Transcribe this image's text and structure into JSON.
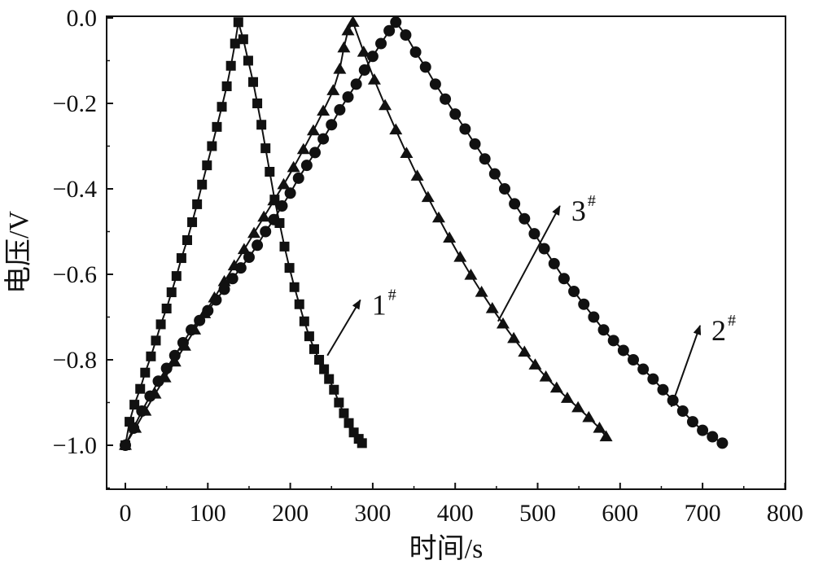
{
  "chart_data": {
    "type": "line",
    "title": "",
    "xlabel": "时间/s",
    "ylabel": "电压/V",
    "xlim": [
      -20,
      800
    ],
    "ylim": [
      -1.1,
      0.0
    ],
    "x_ticks": [
      "0",
      "100",
      "200",
      "300",
      "400",
      "500",
      "600",
      "700",
      "800"
    ],
    "y_ticks": [
      "0.0",
      "−0.2",
      "−0.4",
      "−0.6",
      "−0.8",
      "−1.0"
    ],
    "grid": false,
    "legend": "none",
    "series": [
      {
        "marker": "square",
        "color": "#111111",
        "points": [
          [
            0,
            -1.0
          ],
          [
            5,
            -0.945
          ],
          [
            11,
            -0.905
          ],
          [
            18,
            -0.868
          ],
          [
            24,
            -0.83
          ],
          [
            31,
            -0.792
          ],
          [
            37,
            -0.755
          ],
          [
            43,
            -0.717
          ],
          [
            50,
            -0.68
          ],
          [
            56,
            -0.642
          ],
          [
            62,
            -0.604
          ],
          [
            68,
            -0.562
          ],
          [
            75,
            -0.52
          ],
          [
            81,
            -0.478
          ],
          [
            87,
            -0.436
          ],
          [
            93,
            -0.39
          ],
          [
            99,
            -0.345
          ],
          [
            105,
            -0.3
          ],
          [
            111,
            -0.255
          ],
          [
            117,
            -0.208
          ],
          [
            123,
            -0.16
          ],
          [
            128,
            -0.112
          ],
          [
            133,
            -0.06
          ],
          [
            137,
            -0.01
          ],
          [
            143,
            -0.05
          ],
          [
            149,
            -0.1
          ],
          [
            155,
            -0.15
          ],
          [
            160,
            -0.2
          ],
          [
            165,
            -0.25
          ],
          [
            170,
            -0.305
          ],
          [
            175,
            -0.36
          ],
          [
            181,
            -0.425
          ],
          [
            187,
            -0.48
          ],
          [
            193,
            -0.535
          ],
          [
            199,
            -0.585
          ],
          [
            205,
            -0.63
          ],
          [
            211,
            -0.67
          ],
          [
            217,
            -0.71
          ],
          [
            223,
            -0.745
          ],
          [
            229,
            -0.775
          ],
          [
            235,
            -0.8
          ],
          [
            241,
            -0.822
          ],
          [
            247,
            -0.845
          ],
          [
            253,
            -0.87
          ],
          [
            259,
            -0.9
          ],
          [
            265,
            -0.925
          ],
          [
            271,
            -0.948
          ],
          [
            277,
            -0.97
          ],
          [
            283,
            -0.985
          ],
          [
            287,
            -0.995
          ]
        ]
      },
      {
        "marker": "circle",
        "color": "#111111",
        "points": [
          [
            0,
            -1.0
          ],
          [
            10,
            -0.96
          ],
          [
            20,
            -0.92
          ],
          [
            30,
            -0.885
          ],
          [
            40,
            -0.85
          ],
          [
            50,
            -0.82
          ],
          [
            60,
            -0.79
          ],
          [
            70,
            -0.76
          ],
          [
            80,
            -0.73
          ],
          [
            90,
            -0.708
          ],
          [
            100,
            -0.685
          ],
          [
            110,
            -0.66
          ],
          [
            120,
            -0.635
          ],
          [
            130,
            -0.61
          ],
          [
            140,
            -0.585
          ],
          [
            150,
            -0.56
          ],
          [
            160,
            -0.532
          ],
          [
            170,
            -0.5
          ],
          [
            180,
            -0.472
          ],
          [
            190,
            -0.44
          ],
          [
            200,
            -0.41
          ],
          [
            210,
            -0.375
          ],
          [
            220,
            -0.345
          ],
          [
            230,
            -0.315
          ],
          [
            240,
            -0.283
          ],
          [
            250,
            -0.25
          ],
          [
            260,
            -0.215
          ],
          [
            270,
            -0.185
          ],
          [
            280,
            -0.155
          ],
          [
            290,
            -0.122
          ],
          [
            300,
            -0.09
          ],
          [
            310,
            -0.06
          ],
          [
            320,
            -0.03
          ],
          [
            328,
            -0.01
          ],
          [
            340,
            -0.04
          ],
          [
            352,
            -0.08
          ],
          [
            364,
            -0.115
          ],
          [
            376,
            -0.155
          ],
          [
            388,
            -0.19
          ],
          [
            400,
            -0.225
          ],
          [
            412,
            -0.26
          ],
          [
            424,
            -0.295
          ],
          [
            436,
            -0.33
          ],
          [
            448,
            -0.365
          ],
          [
            460,
            -0.4
          ],
          [
            472,
            -0.435
          ],
          [
            484,
            -0.47
          ],
          [
            496,
            -0.505
          ],
          [
            508,
            -0.54
          ],
          [
            520,
            -0.575
          ],
          [
            532,
            -0.61
          ],
          [
            544,
            -0.64
          ],
          [
            556,
            -0.67
          ],
          [
            568,
            -0.7
          ],
          [
            580,
            -0.73
          ],
          [
            592,
            -0.755
          ],
          [
            604,
            -0.778
          ],
          [
            616,
            -0.8
          ],
          [
            628,
            -0.822
          ],
          [
            640,
            -0.845
          ],
          [
            652,
            -0.87
          ],
          [
            664,
            -0.895
          ],
          [
            676,
            -0.92
          ],
          [
            688,
            -0.945
          ],
          [
            700,
            -0.965
          ],
          [
            712,
            -0.98
          ],
          [
            724,
            -0.995
          ]
        ]
      },
      {
        "marker": "triangle",
        "color": "#111111",
        "points": [
          [
            0,
            -1.0
          ],
          [
            12,
            -0.96
          ],
          [
            24,
            -0.92
          ],
          [
            36,
            -0.88
          ],
          [
            48,
            -0.842
          ],
          [
            60,
            -0.805
          ],
          [
            72,
            -0.768
          ],
          [
            84,
            -0.73
          ],
          [
            96,
            -0.692
          ],
          [
            108,
            -0.655
          ],
          [
            120,
            -0.617
          ],
          [
            132,
            -0.58
          ],
          [
            144,
            -0.542
          ],
          [
            156,
            -0.504
          ],
          [
            168,
            -0.466
          ],
          [
            180,
            -0.428
          ],
          [
            192,
            -0.39
          ],
          [
            204,
            -0.35
          ],
          [
            216,
            -0.308
          ],
          [
            228,
            -0.264
          ],
          [
            240,
            -0.218
          ],
          [
            252,
            -0.17
          ],
          [
            260,
            -0.12
          ],
          [
            265,
            -0.07
          ],
          [
            270,
            -0.03
          ],
          [
            276,
            -0.01
          ],
          [
            289,
            -0.08
          ],
          [
            302,
            -0.145
          ],
          [
            315,
            -0.205
          ],
          [
            328,
            -0.262
          ],
          [
            341,
            -0.317
          ],
          [
            354,
            -0.37
          ],
          [
            367,
            -0.42
          ],
          [
            380,
            -0.468
          ],
          [
            393,
            -0.515
          ],
          [
            406,
            -0.56
          ],
          [
            419,
            -0.602
          ],
          [
            432,
            -0.642
          ],
          [
            445,
            -0.68
          ],
          [
            458,
            -0.716
          ],
          [
            471,
            -0.75
          ],
          [
            484,
            -0.782
          ],
          [
            497,
            -0.812
          ],
          [
            510,
            -0.84
          ],
          [
            523,
            -0.866
          ],
          [
            536,
            -0.89
          ],
          [
            549,
            -0.912
          ],
          [
            562,
            -0.935
          ],
          [
            575,
            -0.96
          ],
          [
            583,
            -0.98
          ]
        ]
      }
    ],
    "annotations": [
      {
        "label": "1",
        "sup": "#",
        "from": [
          245,
          -0.79
        ],
        "to": [
          285,
          -0.66
        ]
      },
      {
        "label": "2",
        "sup": "#",
        "from": [
          662,
          -0.91
        ],
        "to": [
          697,
          -0.72
        ]
      },
      {
        "label": "3",
        "sup": "#",
        "from": [
          452,
          -0.71
        ],
        "to": [
          527,
          -0.44
        ]
      }
    ]
  }
}
